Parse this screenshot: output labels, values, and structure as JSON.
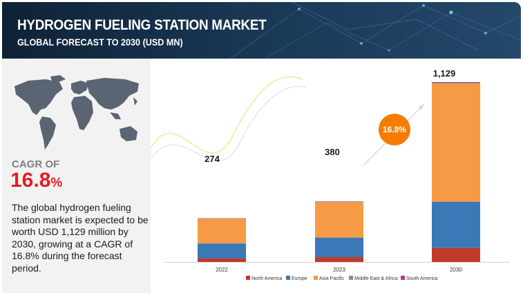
{
  "header": {
    "title": "HYDROGEN FUELING STATION MARKET",
    "subtitle": "GLOBAL FORECAST TO 2030 (USD MN)"
  },
  "left_panel": {
    "icon": "world-map-icon",
    "cagr_label": "CAGR OF",
    "cagr_value": "16.8",
    "cagr_unit": "%",
    "description": "The global hydrogen fueling station market is expected to be worth USD 1,129 million by 2030, growing at a CAGR of 16.8% during the forecast period."
  },
  "chart_data": {
    "type": "bar",
    "stacked": true,
    "categories": [
      "2022",
      "2023",
      "2030"
    ],
    "totals": [
      "274",
      "380",
      "1,129"
    ],
    "total_values": [
      274,
      380,
      1129
    ],
    "ylim": [
      0,
      1129
    ],
    "series": [
      {
        "name": "North America",
        "color": "#c0392b",
        "values": [
          22,
          30,
          88
        ]
      },
      {
        "name": "Europe",
        "color": "#3a78b8",
        "values": [
          94,
          123,
          290
        ]
      },
      {
        "name": "Asia Pacific",
        "color": "#f79a45",
        "values": [
          154,
          222,
          742
        ]
      },
      {
        "name": "Middle East & Africa",
        "color": "#8c8c8c",
        "values": [
          2,
          3,
          5
        ]
      },
      {
        "name": "South America",
        "color": "#b03a8a",
        "values": [
          2,
          2,
          4
        ]
      }
    ],
    "cagr_badge": "16.8%",
    "legend_position": "bottom",
    "grid": false
  }
}
